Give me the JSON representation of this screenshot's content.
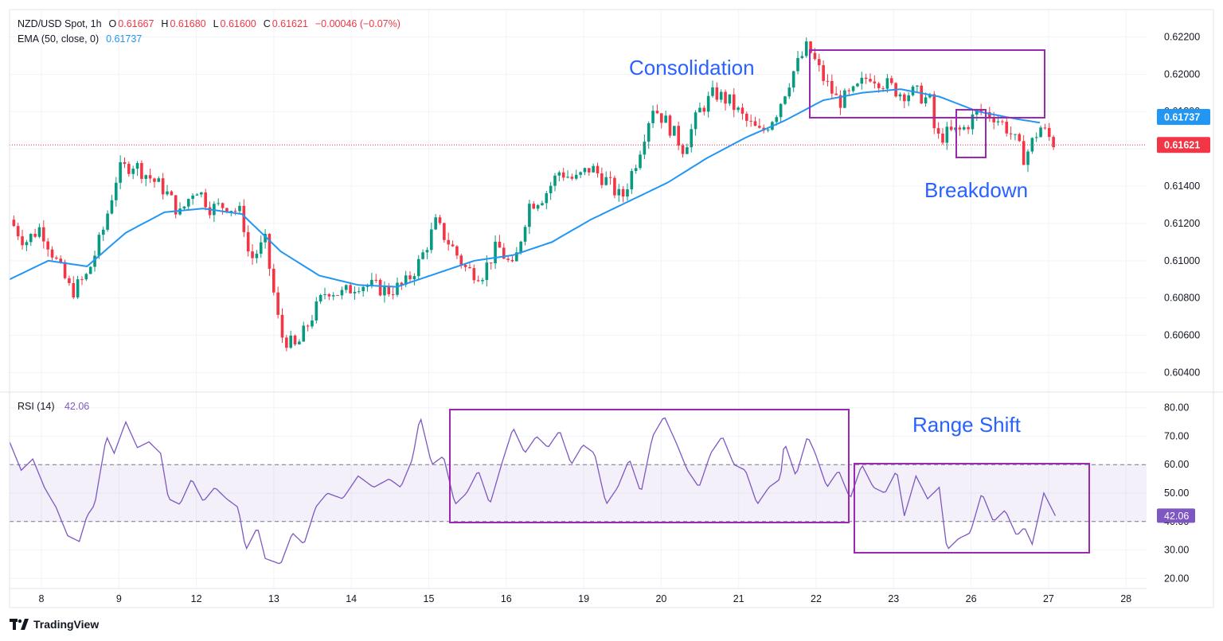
{
  "header": {
    "symbol": "NZD/USD Spot, 1h",
    "open_label": "O",
    "open": "0.61667",
    "high_label": "H",
    "high": "0.61680",
    "low_label": "L",
    "low": "0.61600",
    "close_label": "C",
    "close": "0.61621",
    "change": "−0.00046 (−0.07%)",
    "ema_label": "EMA (50, close, 0)",
    "ema_value": "0.61737",
    "rsi_label": "RSI (14)",
    "rsi_value": "42.06"
  },
  "brand": {
    "name": "TradingView"
  },
  "colors": {
    "up": "#089981",
    "down": "#f23645",
    "ema": "#2196f3",
    "rsi": "#7e57c2",
    "box": "#9c27b0",
    "annotation": "#2962ff"
  },
  "chart_data": [
    {
      "type": "candlestick",
      "title": "NZD/USD Spot, 1h",
      "x_ticks": [
        "8",
        "9",
        "12",
        "13",
        "14",
        "15",
        "16",
        "19",
        "20",
        "21",
        "22",
        "23",
        "26",
        "27",
        "28"
      ],
      "y_ticks": [
        "0.62200",
        "0.62000",
        "0.61800",
        "0.61600",
        "0.61400",
        "0.61200",
        "0.61000",
        "0.60800",
        "0.60600",
        "0.60400"
      ],
      "ylim": [
        0.603,
        0.6227
      ],
      "last_price": "0.61621",
      "ema_last": "0.61737",
      "close_path": [
        [
          0.0,
          0.6122
        ],
        [
          0.2,
          0.611
        ],
        [
          0.4,
          0.6118
        ],
        [
          0.6,
          0.61
        ],
        [
          0.8,
          0.6083
        ],
        [
          1.0,
          0.6092
        ],
        [
          1.2,
          0.6115
        ],
        [
          1.4,
          0.6148
        ],
        [
          1.6,
          0.6152
        ],
        [
          1.8,
          0.6145
        ],
        [
          2.0,
          0.6138
        ],
        [
          2.2,
          0.6125
        ],
        [
          2.4,
          0.614
        ],
        [
          2.6,
          0.6128
        ],
        [
          2.8,
          0.613
        ],
        [
          3.0,
          0.6125
        ],
        [
          3.1,
          0.61
        ],
        [
          3.3,
          0.611
        ],
        [
          3.5,
          0.606
        ],
        [
          3.7,
          0.6053
        ],
        [
          3.9,
          0.607
        ],
        [
          4.1,
          0.6085
        ],
        [
          4.3,
          0.6082
        ],
        [
          4.5,
          0.6088
        ],
        [
          4.7,
          0.6086
        ],
        [
          4.9,
          0.6084
        ],
        [
          5.1,
          0.6087
        ],
        [
          5.3,
          0.61
        ],
        [
          5.5,
          0.612
        ],
        [
          5.7,
          0.6108
        ],
        [
          5.9,
          0.6095
        ],
        [
          6.1,
          0.6093
        ],
        [
          6.3,
          0.6108
        ],
        [
          6.5,
          0.6095
        ],
        [
          6.7,
          0.613
        ],
        [
          6.9,
          0.6135
        ],
        [
          7.1,
          0.6148
        ],
        [
          7.3,
          0.6143
        ],
        [
          7.5,
          0.615
        ],
        [
          7.7,
          0.6143
        ],
        [
          7.9,
          0.6133
        ],
        [
          8.1,
          0.6155
        ],
        [
          8.3,
          0.6183
        ],
        [
          8.5,
          0.6173
        ],
        [
          8.7,
          0.616
        ],
        [
          8.9,
          0.618
        ],
        [
          9.1,
          0.619
        ],
        [
          9.3,
          0.6185
        ],
        [
          9.5,
          0.6175
        ],
        [
          9.7,
          0.6168
        ],
        [
          9.9,
          0.618
        ],
        [
          10.1,
          0.62
        ],
        [
          10.3,
          0.6215
        ],
        [
          10.5,
          0.6198
        ],
        [
          10.7,
          0.6185
        ],
        [
          10.9,
          0.619
        ],
        [
          11.1,
          0.62
        ],
        [
          11.3,
          0.6195
        ],
        [
          11.5,
          0.619
        ],
        [
          11.7,
          0.619
        ],
        [
          11.9,
          0.6185
        ],
        [
          11.95,
          0.6165
        ],
        [
          12.1,
          0.6168
        ],
        [
          12.3,
          0.617
        ],
        [
          12.5,
          0.618
        ],
        [
          12.7,
          0.6178
        ],
        [
          12.9,
          0.617
        ],
        [
          13.1,
          0.6155
        ],
        [
          13.3,
          0.6172
        ],
        [
          13.5,
          0.6162
        ]
      ],
      "ema_path": [
        [
          0.0,
          0.609
        ],
        [
          0.5,
          0.61
        ],
        [
          1.0,
          0.6097
        ],
        [
          1.5,
          0.6115
        ],
        [
          2.0,
          0.6126
        ],
        [
          2.5,
          0.6128
        ],
        [
          3.0,
          0.6125
        ],
        [
          3.5,
          0.6105
        ],
        [
          4.0,
          0.6092
        ],
        [
          4.5,
          0.6087
        ],
        [
          5.0,
          0.6086
        ],
        [
          5.5,
          0.6093
        ],
        [
          6.0,
          0.61
        ],
        [
          6.5,
          0.6103
        ],
        [
          7.0,
          0.611
        ],
        [
          7.5,
          0.6122
        ],
        [
          8.0,
          0.6132
        ],
        [
          8.5,
          0.6142
        ],
        [
          9.0,
          0.6155
        ],
        [
          9.5,
          0.6166
        ],
        [
          10.0,
          0.6175
        ],
        [
          10.5,
          0.6186
        ],
        [
          11.0,
          0.619
        ],
        [
          11.5,
          0.6192
        ],
        [
          12.0,
          0.6188
        ],
        [
          12.5,
          0.618
        ],
        [
          13.0,
          0.6176
        ],
        [
          13.3,
          0.6174
        ]
      ]
    },
    {
      "type": "line",
      "title": "RSI (14)",
      "y_ticks": [
        "80.00",
        "70.00",
        "60.00",
        "50.00",
        "40.00",
        "30.00",
        "20.00"
      ],
      "ylim": [
        17,
        83
      ],
      "band": [
        40,
        60
      ],
      "last_value": "42.06",
      "path": [
        [
          0.0,
          68
        ],
        [
          0.15,
          58
        ],
        [
          0.3,
          62
        ],
        [
          0.45,
          52
        ],
        [
          0.6,
          45
        ],
        [
          0.75,
          35
        ],
        [
          0.9,
          33
        ],
        [
          1.0,
          42
        ],
        [
          1.1,
          46
        ],
        [
          1.25,
          70
        ],
        [
          1.35,
          64
        ],
        [
          1.5,
          75
        ],
        [
          1.65,
          66
        ],
        [
          1.8,
          68
        ],
        [
          1.95,
          64
        ],
        [
          2.05,
          48
        ],
        [
          2.2,
          46
        ],
        [
          2.35,
          55
        ],
        [
          2.5,
          47
        ],
        [
          2.65,
          52
        ],
        [
          2.8,
          48
        ],
        [
          2.95,
          45
        ],
        [
          3.05,
          30
        ],
        [
          3.2,
          38
        ],
        [
          3.3,
          27
        ],
        [
          3.5,
          25
        ],
        [
          3.65,
          36
        ],
        [
          3.8,
          32
        ],
        [
          3.95,
          45
        ],
        [
          4.1,
          50
        ],
        [
          4.3,
          48
        ],
        [
          4.5,
          56
        ],
        [
          4.7,
          52
        ],
        [
          4.9,
          55
        ],
        [
          5.05,
          52
        ],
        [
          5.2,
          62
        ],
        [
          5.3,
          77
        ],
        [
          5.45,
          60
        ],
        [
          5.6,
          63
        ],
        [
          5.75,
          46
        ],
        [
          5.9,
          50
        ],
        [
          6.05,
          58
        ],
        [
          6.2,
          46
        ],
        [
          6.35,
          60
        ],
        [
          6.5,
          73
        ],
        [
          6.65,
          64
        ],
        [
          6.8,
          70
        ],
        [
          6.95,
          66
        ],
        [
          7.1,
          72
        ],
        [
          7.25,
          60
        ],
        [
          7.4,
          67
        ],
        [
          7.55,
          64
        ],
        [
          7.7,
          46
        ],
        [
          7.85,
          52
        ],
        [
          8.0,
          62
        ],
        [
          8.15,
          50
        ],
        [
          8.3,
          70
        ],
        [
          8.45,
          77
        ],
        [
          8.6,
          68
        ],
        [
          8.75,
          58
        ],
        [
          8.9,
          52
        ],
        [
          9.05,
          64
        ],
        [
          9.2,
          70
        ],
        [
          9.35,
          60
        ],
        [
          9.5,
          58
        ],
        [
          9.65,
          46
        ],
        [
          9.8,
          52
        ],
        [
          9.95,
          55
        ],
        [
          10.0,
          68
        ],
        [
          10.15,
          56
        ],
        [
          10.3,
          70
        ],
        [
          10.4,
          64
        ],
        [
          10.55,
          52
        ],
        [
          10.7,
          58
        ],
        [
          10.85,
          48
        ],
        [
          11.0,
          60
        ],
        [
          11.15,
          52
        ],
        [
          11.3,
          50
        ],
        [
          11.45,
          58
        ],
        [
          11.55,
          42
        ],
        [
          11.7,
          56
        ],
        [
          11.85,
          48
        ],
        [
          12.0,
          52
        ],
        [
          12.1,
          30
        ],
        [
          12.25,
          34
        ],
        [
          12.4,
          36
        ],
        [
          12.55,
          50
        ],
        [
          12.7,
          40
        ],
        [
          12.85,
          44
        ],
        [
          13.0,
          35
        ],
        [
          13.1,
          38
        ],
        [
          13.2,
          32
        ],
        [
          13.35,
          50
        ],
        [
          13.5,
          42
        ]
      ]
    }
  ],
  "annotations": {
    "consolidation": "Consolidation",
    "breakdown": "Breakdown",
    "range_shift": "Range Shift"
  }
}
